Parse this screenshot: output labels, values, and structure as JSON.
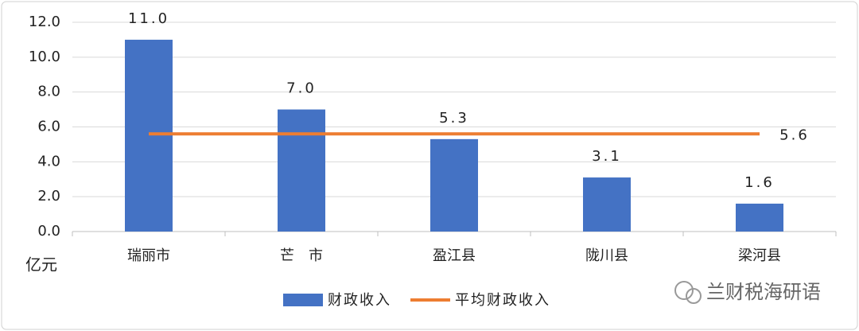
{
  "chart_data": {
    "type": "bar",
    "categories": [
      "瑞丽市",
      "芒　市",
      "盈江县",
      "陇川县",
      "梁河县"
    ],
    "series": [
      {
        "name": "财政收入",
        "type": "bar",
        "color": "#4472c4",
        "values": [
          11.0,
          7.0,
          5.3,
          3.1,
          1.6
        ],
        "value_labels": [
          "11.0",
          "7.0",
          "5.3",
          "3.1",
          "1.6"
        ]
      },
      {
        "name": "平均财政收入",
        "type": "line",
        "color": "#ed7d31",
        "values": [
          5.6,
          5.6,
          5.6,
          5.6,
          5.6
        ],
        "value_labels": [
          null,
          null,
          null,
          null,
          "5.6"
        ]
      }
    ],
    "y_label": "亿元",
    "ylim": [
      0,
      12
    ],
    "yticks": [
      {
        "value": 0,
        "label": "0.0"
      },
      {
        "value": 2,
        "label": "2.0"
      },
      {
        "value": 4,
        "label": "4.0"
      },
      {
        "value": 6,
        "label": "6.0"
      },
      {
        "value": 8,
        "label": "8.0"
      },
      {
        "value": 10,
        "label": "10.0"
      },
      {
        "value": 12,
        "label": "12.0"
      }
    ],
    "grid": true,
    "legend": "bottom",
    "watermark": "兰财税海研语"
  }
}
